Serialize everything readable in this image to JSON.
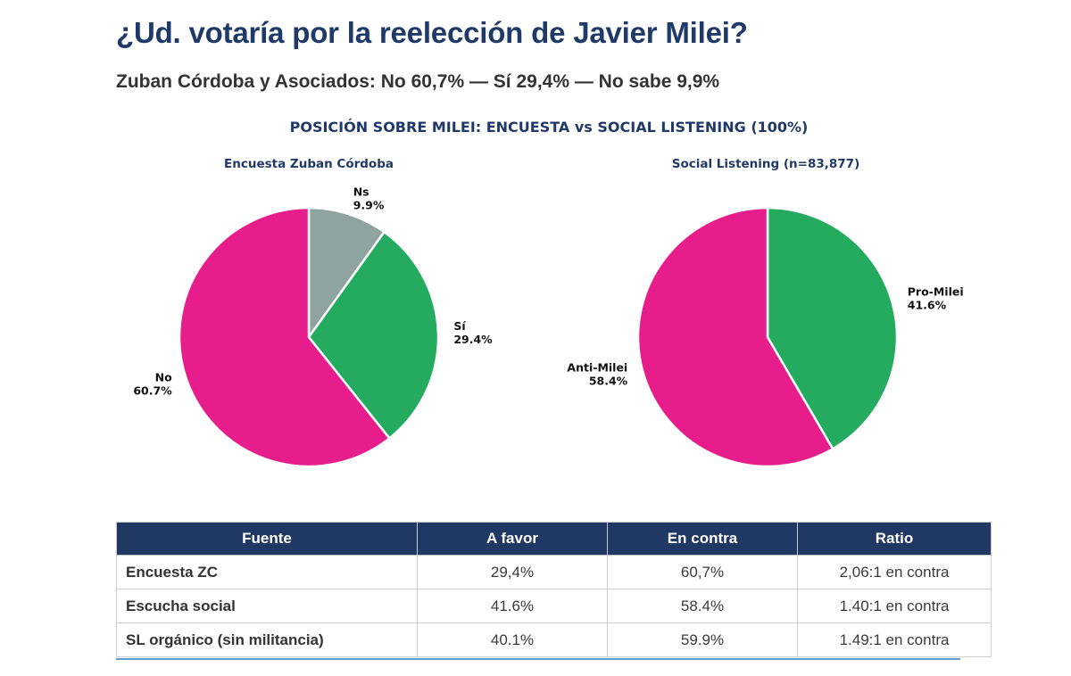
{
  "header": {
    "title": "¿Ud. votaría por la reelección de Javier Milei?",
    "subtitle": "Zuban Córdoba y Asociados: No 60,7% — Sí 29,4% — No sabe 9,9%"
  },
  "chart_data": [
    {
      "type": "pie",
      "figure_title": "POSICIÓN SOBRE MILEI: ENCUESTA vs SOCIAL LISTENING (100%)",
      "title": "Encuesta Zuban Córdoba",
      "start": "top, clockwise",
      "slices": [
        {
          "label": "Ns",
          "value": 9.9,
          "display": "9.9%",
          "color": "#8fa39f"
        },
        {
          "label": "Sí",
          "value": 29.4,
          "display": "29.4%",
          "color": "#24ab5f"
        },
        {
          "label": "No",
          "value": 60.7,
          "display": "60.7%",
          "color": "#e61d8a"
        }
      ]
    },
    {
      "type": "pie",
      "title": "Social Listening (n=83,877)",
      "start": "top, clockwise",
      "slices": [
        {
          "label": "Pro-Milei",
          "value": 41.6,
          "display": "41.6%",
          "color": "#24ab5f"
        },
        {
          "label": "Anti-Milei",
          "value": 58.4,
          "display": "58.4%",
          "color": "#e61d8a"
        }
      ]
    }
  ],
  "table": {
    "headers": [
      "Fuente",
      "A favor",
      "En contra",
      "Ratio"
    ],
    "rows": [
      [
        "Encuesta ZC",
        "29,4%",
        "60,7%",
        "2,06:1 en contra"
      ],
      [
        "Escucha social",
        "41.6%",
        "58.4%",
        "1.40:1 en contra"
      ],
      [
        "SL orgánico (sin militancia)",
        "40.1%",
        "59.9%",
        "1.49:1 en contra"
      ]
    ]
  },
  "colors": {
    "title": "#1f3a68",
    "header_bg": "#1f3864",
    "accent_rule": "#5b9bd5"
  }
}
